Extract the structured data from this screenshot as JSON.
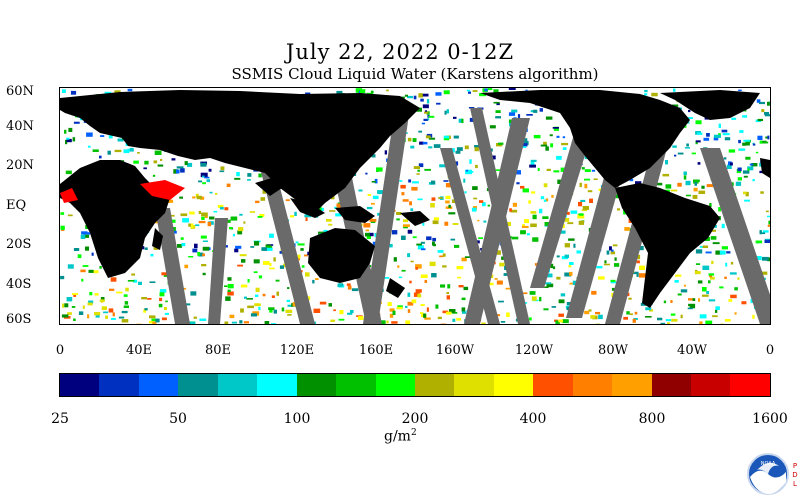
{
  "header": {
    "title": "July 22, 2022 0-12Z",
    "subtitle": "SSMIS Cloud Liquid Water (Karstens algorithm)"
  },
  "map": {
    "latitude_labels": [
      "60N",
      "40N",
      "20N",
      "EQ",
      "20S",
      "40S",
      "60S"
    ],
    "longitude_labels": [
      "0",
      "40E",
      "80E",
      "120E",
      "160E",
      "160W",
      "120W",
      "80W",
      "40W",
      "0"
    ]
  },
  "colorbar": {
    "colors": [
      "#00007f",
      "#0030c0",
      "#0060ff",
      "#009090",
      "#00c8c8",
      "#00ffff",
      "#009000",
      "#00c000",
      "#00ff00",
      "#b0b000",
      "#e0e000",
      "#ffff00",
      "#ff5000",
      "#ff8000",
      "#ffa000",
      "#900000",
      "#c80000",
      "#ff0000"
    ],
    "tick_labels": [
      "25",
      "50",
      "100",
      "200",
      "400",
      "800",
      "1600"
    ],
    "units": "g/m",
    "units_exponent": "2"
  },
  "logo": {
    "text": "NOAA",
    "side_text": "PDL"
  }
}
